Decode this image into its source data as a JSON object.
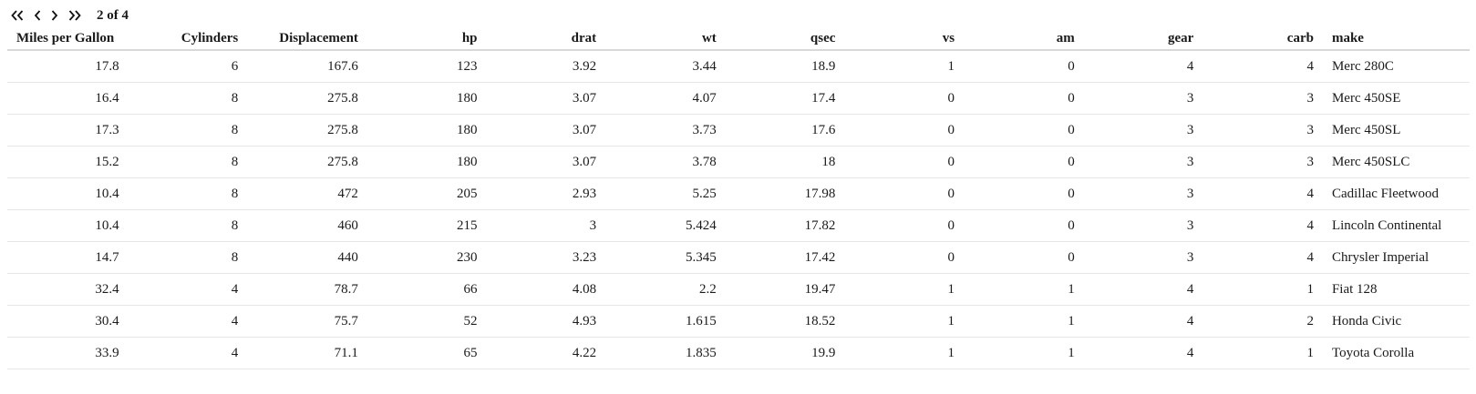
{
  "pager": {
    "first_icon": "double-chevron-left-icon",
    "prev_icon": "chevron-left-icon",
    "next_icon": "chevron-right-icon",
    "last_icon": "double-chevron-right-icon",
    "label": "2 of 4"
  },
  "table": {
    "columns": [
      "Miles per Gallon",
      "Cylinders",
      "Displacement",
      "hp",
      "drat",
      "wt",
      "qsec",
      "vs",
      "am",
      "gear",
      "carb",
      "make"
    ],
    "rows": [
      [
        "17.8",
        "6",
        "167.6",
        "123",
        "3.92",
        "3.44",
        "18.9",
        "1",
        "0",
        "4",
        "4",
        "Merc 280C"
      ],
      [
        "16.4",
        "8",
        "275.8",
        "180",
        "3.07",
        "4.07",
        "17.4",
        "0",
        "0",
        "3",
        "3",
        "Merc 450SE"
      ],
      [
        "17.3",
        "8",
        "275.8",
        "180",
        "3.07",
        "3.73",
        "17.6",
        "0",
        "0",
        "3",
        "3",
        "Merc 450SL"
      ],
      [
        "15.2",
        "8",
        "275.8",
        "180",
        "3.07",
        "3.78",
        "18",
        "0",
        "0",
        "3",
        "3",
        "Merc 450SLC"
      ],
      [
        "10.4",
        "8",
        "472",
        "205",
        "2.93",
        "5.25",
        "17.98",
        "0",
        "0",
        "3",
        "4",
        "Cadillac Fleetwood"
      ],
      [
        "10.4",
        "8",
        "460",
        "215",
        "3",
        "5.424",
        "17.82",
        "0",
        "0",
        "3",
        "4",
        "Lincoln Continental"
      ],
      [
        "14.7",
        "8",
        "440",
        "230",
        "3.23",
        "5.345",
        "17.42",
        "0",
        "0",
        "3",
        "4",
        "Chrysler Imperial"
      ],
      [
        "32.4",
        "4",
        "78.7",
        "66",
        "4.08",
        "2.2",
        "19.47",
        "1",
        "1",
        "4",
        "1",
        "Fiat 128"
      ],
      [
        "30.4",
        "4",
        "75.7",
        "52",
        "4.93",
        "1.615",
        "18.52",
        "1",
        "1",
        "4",
        "2",
        "Honda Civic"
      ],
      [
        "33.9",
        "4",
        "71.1",
        "65",
        "4.22",
        "1.835",
        "19.9",
        "1",
        "1",
        "4",
        "1",
        "Toyota Corolla"
      ]
    ]
  }
}
